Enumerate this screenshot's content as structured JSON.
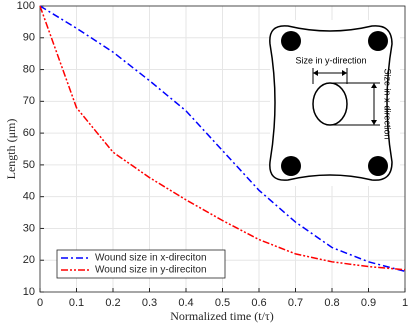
{
  "chart_data": {
    "type": "line",
    "x_label": "Normalized time (t/τ)",
    "y_label": "Length (μm)",
    "x": [
      0,
      0.1,
      0.2,
      0.3,
      0.4,
      0.5,
      0.6,
      0.7,
      0.8,
      0.9,
      1
    ],
    "series": [
      {
        "name": "Wound size in x-direciton",
        "color": "#0000ff",
        "values": [
          100,
          93,
          85.5,
          76.5,
          67,
          54.5,
          42,
          32,
          24,
          19.5,
          16.5
        ]
      },
      {
        "name": "Wound size in y-direciton",
        "color": "#ff0000",
        "values": [
          100,
          68,
          54,
          46,
          39,
          32.5,
          26.5,
          22,
          19.5,
          18,
          17
        ]
      }
    ],
    "xlim": [
      0,
      1
    ],
    "xticks": [
      0,
      0.1,
      0.2,
      0.3,
      0.4,
      0.5,
      0.6,
      0.7,
      0.8,
      0.9,
      1
    ],
    "ylim": [
      10,
      100
    ],
    "yticks": [
      10,
      20,
      30,
      40,
      50,
      60,
      70,
      80,
      90,
      100
    ],
    "grid": true,
    "legend": "lower left",
    "annotations": [
      "Size in y-direction",
      "Size in x-direction"
    ]
  }
}
